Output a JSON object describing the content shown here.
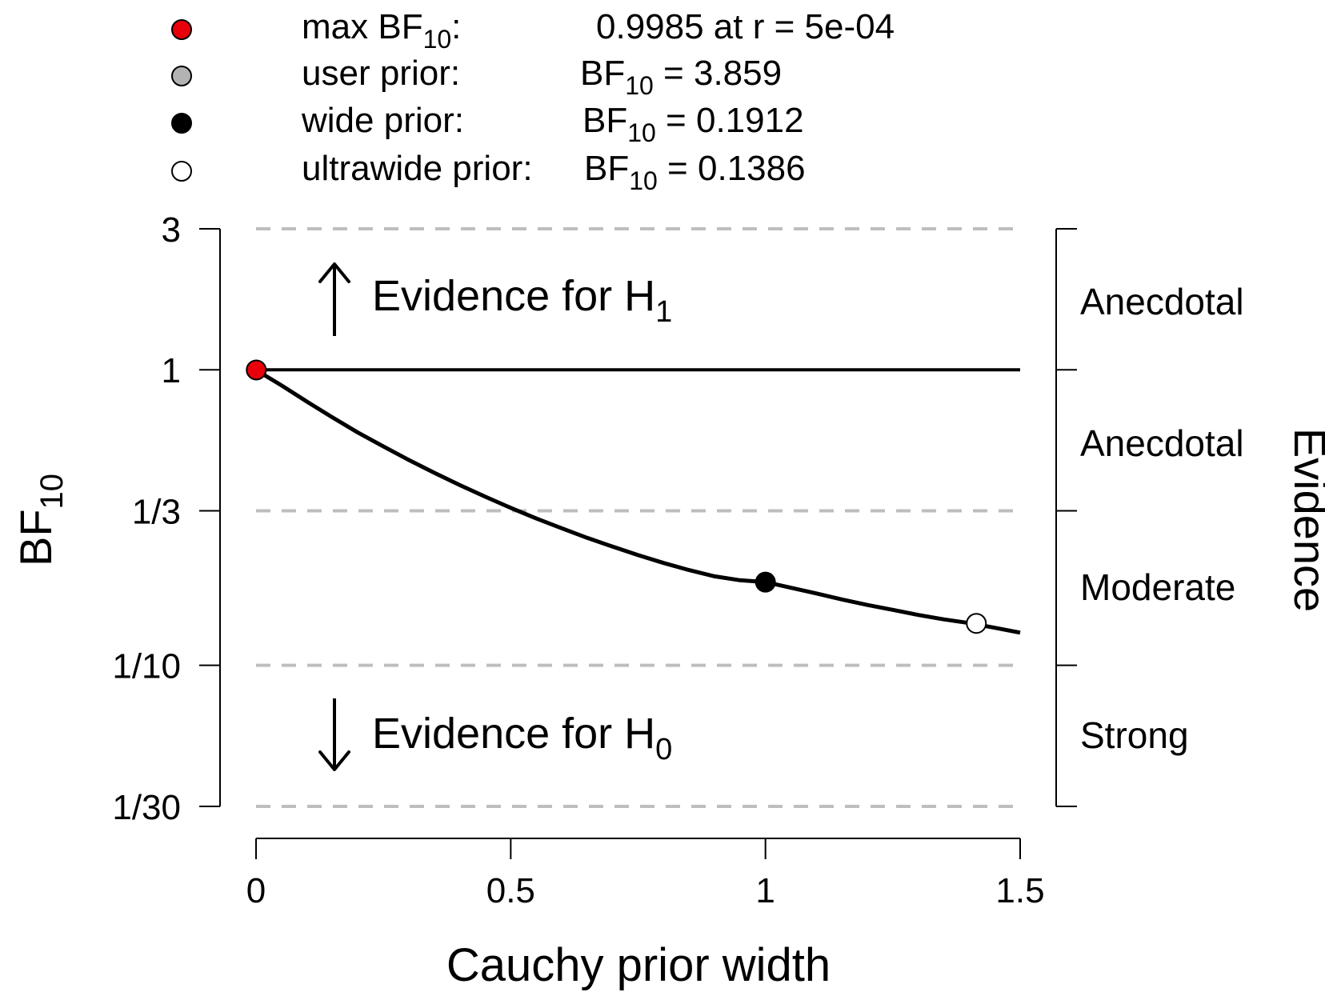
{
  "legend": [
    {
      "label": "max BF",
      "sub": "10",
      "colon": ":",
      "value_prefix": "",
      "value_sub": "",
      "value": "0.9985 at r = 5e-04",
      "fill": "#e8000b",
      "stroke": "#000000"
    },
    {
      "label": "user prior:",
      "sub": "",
      "colon": "",
      "value_prefix": "BF",
      "value_sub": "10",
      "value": " = 3.859",
      "fill": "#b3b3b3",
      "stroke": "#000000"
    },
    {
      "label": "wide prior:",
      "sub": "",
      "colon": "",
      "value_prefix": "BF",
      "value_sub": "10",
      "value": " = 0.1912",
      "fill": "#000000",
      "stroke": "#000000"
    },
    {
      "label": "ultrawide prior:",
      "sub": "",
      "colon": "",
      "value_prefix": "BF",
      "value_sub": "10",
      "value": " = 0.1386",
      "fill": "#ffffff",
      "stroke": "#000000"
    }
  ],
  "annotations": {
    "h1": {
      "text": "Evidence for H",
      "sub": "1"
    },
    "h0": {
      "text": "Evidence for H",
      "sub": "0"
    }
  },
  "evidence_labels": [
    "Anecdotal",
    "Anecdotal",
    "Moderate",
    "Strong"
  ],
  "chart_data": {
    "type": "line",
    "title": "",
    "xlabel": "Cauchy prior width",
    "ylabel": {
      "text": "BF",
      "sub": "10"
    },
    "right_label": "Evidence",
    "y_scale": "log",
    "xlim": [
      0,
      1.5
    ],
    "ylim": [
      0.0333,
      3
    ],
    "x_ticks": [
      {
        "value": 0,
        "label": "0"
      },
      {
        "value": 0.5,
        "label": "0.5"
      },
      {
        "value": 1,
        "label": "1"
      },
      {
        "value": 1.5,
        "label": "1.5"
      }
    ],
    "y_ticks": [
      {
        "value": 3,
        "label": "3"
      },
      {
        "value": 1,
        "label": "1"
      },
      {
        "value": 0.3333,
        "label": "1/3"
      },
      {
        "value": 0.1,
        "label": "1/10"
      },
      {
        "value": 0.0333,
        "label": "1/30"
      }
    ],
    "gridlines": [
      3,
      0.3333,
      0.1,
      0.0333
    ],
    "reference_line": 1,
    "series": [
      {
        "x": [
          0,
          0.05,
          0.1,
          0.15,
          0.2,
          0.25,
          0.3,
          0.35,
          0.4,
          0.45,
          0.5,
          0.55,
          0.6,
          0.65,
          0.7,
          0.75,
          0.8,
          0.85,
          0.9,
          0.95,
          1.0,
          1.05,
          1.1,
          1.15,
          1.2,
          1.25,
          1.3,
          1.35,
          1.4,
          1.45,
          1.5
        ],
        "y": [
          0.9985,
          0.885,
          0.78,
          0.69,
          0.613,
          0.55,
          0.495,
          0.448,
          0.407,
          0.372,
          0.341,
          0.314,
          0.291,
          0.27,
          0.252,
          0.236,
          0.222,
          0.21,
          0.2,
          0.194,
          0.1912,
          0.183,
          0.175,
          0.167,
          0.16,
          0.154,
          0.148,
          0.143,
          0.139,
          0.134,
          0.129
        ]
      }
    ],
    "points": [
      {
        "name": "max",
        "x": 0.0005,
        "y": 0.9985,
        "fill": "#e8000b"
      },
      {
        "name": "wide",
        "x": 1.0,
        "y": 0.1912,
        "fill": "#000000"
      },
      {
        "name": "ultrawide",
        "x": 1.414,
        "y": 0.1386,
        "fill": "#ffffff"
      }
    ]
  }
}
